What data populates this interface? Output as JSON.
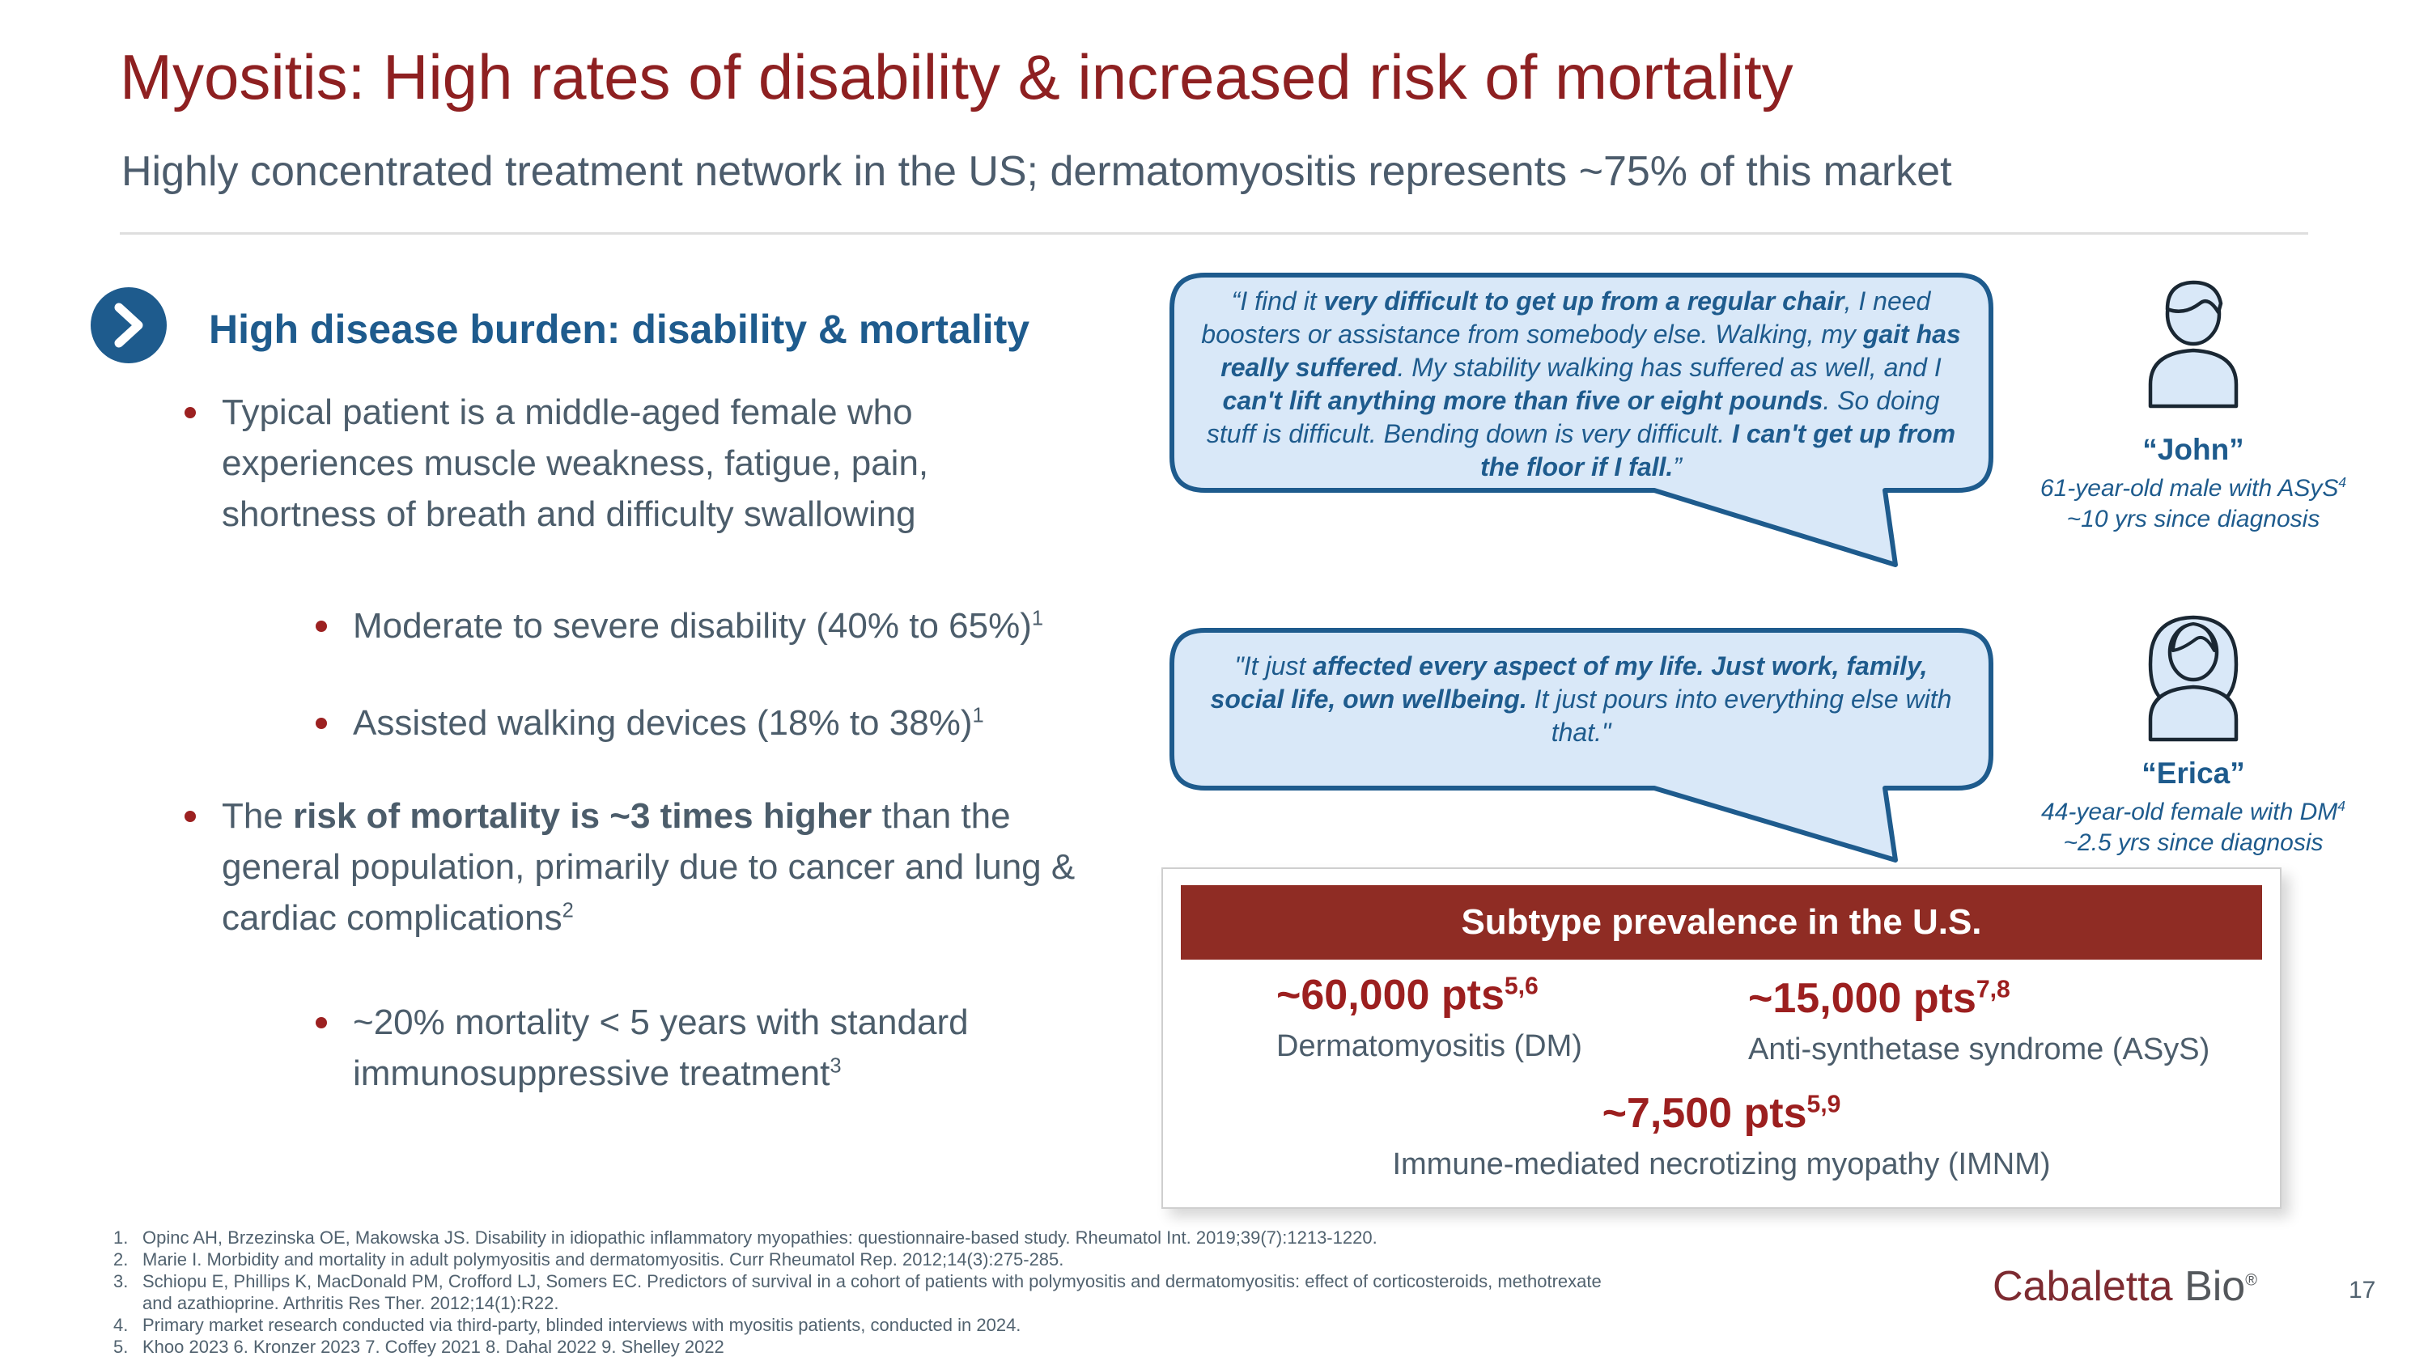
{
  "slide": {
    "title": "Myositis: High rates of disability & increased risk of mortality",
    "subtitle": "Highly concentrated treatment network in the US; dermatomyositis represents ~75% of this market",
    "page_number": "17",
    "logo": {
      "brand": "Cabaletta",
      "suffix": "Bio",
      "reg": "®"
    }
  },
  "colors": {
    "title_red": "#8E2021",
    "brand_red": "#7D2B31",
    "header_bar_red": "#8F2C24",
    "stat_red": "#9C1F1F",
    "heading_blue": "#1E5B8D",
    "bubble_fill": "#D9E8F8",
    "body_slate": "#4C5D6B",
    "footnote_slate": "#51626F",
    "icon_fill": "#D9E8F8",
    "icon_stroke": "#1A2733"
  },
  "left": {
    "heading": "High disease burden: disability & mortality",
    "bullet1": "Typical patient is a middle-aged female who experiences muscle weakness, fatigue, pain, shortness of breath and difficulty swallowing",
    "sub1": {
      "text": "Moderate to severe disability (40% to 65%)",
      "ref": "1"
    },
    "sub2": {
      "text": "Assisted walking devices (18% to 38%)",
      "ref": "1"
    },
    "bullet2_segments": [
      {
        "t": "The "
      },
      {
        "t": "risk of mortality is ~3 times higher",
        "b": true
      },
      {
        "t": " than the general population, primarily due to cancer and lung & cardiac complications"
      },
      {
        "t": "2",
        "sup": true
      }
    ],
    "sub3": {
      "text": "~20% mortality < 5 years with standard immunosuppressive treatment",
      "ref": "3"
    }
  },
  "quotes": {
    "john": {
      "segments": [
        {
          "t": "“I find it "
        },
        {
          "t": "very difficult to get up from a regular chair",
          "b": true
        },
        {
          "t": ", I need boosters or assistance from somebody else. Walking, my "
        },
        {
          "t": "gait has really suffered",
          "b": true
        },
        {
          "t": ". My stability walking has suffered as well, and I "
        },
        {
          "t": "can't lift anything more than five or eight pounds",
          "b": true
        },
        {
          "t": ". So doing stuff is difficult. Bending down is very difficult. "
        },
        {
          "t": "I can't get up from the floor if I fall.",
          "b": true
        },
        {
          "t": "”"
        }
      ],
      "name": "“John”",
      "desc1": "61-year-old male with ASyS",
      "desc1_ref": "4",
      "desc2": "~10 yrs since diagnosis"
    },
    "erica": {
      "segments": [
        {
          "t": "\"It just "
        },
        {
          "t": "affected every aspect of my life. Just work, family, social life, own wellbeing.",
          "b": true
        },
        {
          "t": " It just pours into everything else with that.\""
        }
      ],
      "name": "“Erica”",
      "desc1": "44-year-old female with DM",
      "desc1_ref": "4",
      "desc2": "~2.5 yrs since diagnosis"
    }
  },
  "prevalence": {
    "header": "Subtype prevalence in the U.S.",
    "items": [
      {
        "value": "~60,000 pts",
        "refs": "5,6",
        "label": "Dermatomyositis (DM)"
      },
      {
        "value": "~15,000 pts",
        "refs": "7,8",
        "label": "Anti-synthetase syndrome (ASyS)"
      },
      {
        "value": "~7,500 pts",
        "refs": "5,9",
        "label": "Immune-mediated necrotizing myopathy (IMNM)"
      }
    ]
  },
  "footnotes": [
    {
      "num": "1.",
      "text": "Opinc AH, Brzezinska OE, Makowska JS. Disability in idiopathic inflammatory myopathies: questionnaire-based study. Rheumatol Int. 2019;39(7):1213-1220."
    },
    {
      "num": "2.",
      "text": "Marie I. Morbidity and mortality in adult polymyositis and dermatomyositis. Curr Rheumatol Rep. 2012;14(3):275-285."
    },
    {
      "num": "3.",
      "text": "Schiopu E, Phillips K, MacDonald PM, Crofford LJ, Somers EC. Predictors of survival in a cohort of patients with polymyositis and dermatomyositis: effect of corticosteroids, methotrexate and azathioprine. Arthritis Res Ther. 2012;14(1):R22."
    },
    {
      "num": "4.",
      "text": "Primary market research conducted via third-party, blinded interviews with myositis patients, conducted in 2024."
    },
    {
      "num": "5.",
      "text": "Khoo 2023 6. Kronzer 2023 7. Coffey 2021 8. Dahal 2022 9. Shelley 2022"
    }
  ]
}
